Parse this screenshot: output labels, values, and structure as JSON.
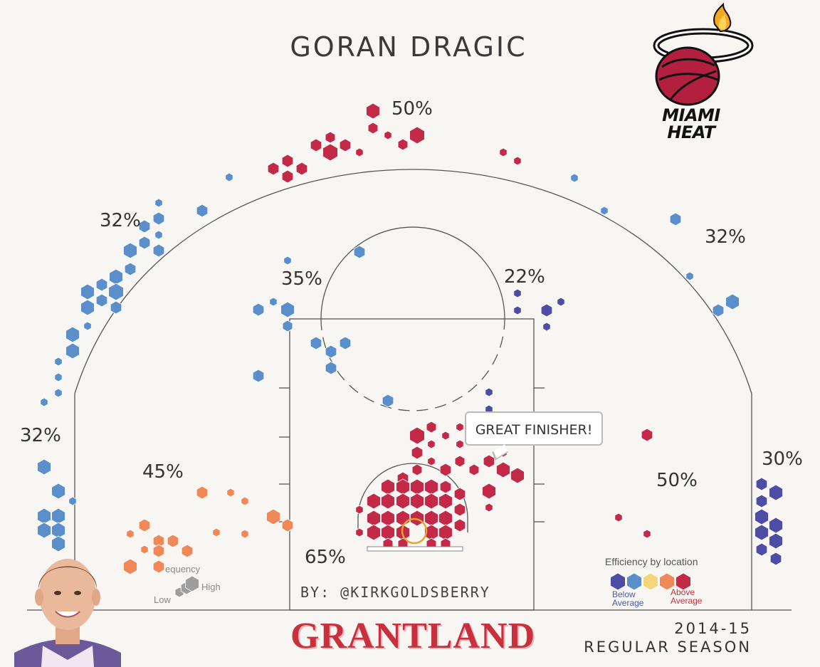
{
  "header": {
    "player_name": "GORAN DRAGIC",
    "byline": "BY: @KIRKGOLDSBERRY",
    "season_year": "2014-15",
    "season_type": "REGULAR SEASON",
    "publisher": "GRANTLAND",
    "team_logo_text_1": "MIAMI",
    "team_logo_text_2": "HEAT"
  },
  "callout": "GREAT FINISHER!",
  "legend": {
    "efficiency_title": "Efficiency by location",
    "below_line1": "Below",
    "below_line2": "Average",
    "above_line1": "Above",
    "above_line2": "Average",
    "frequency_title": "equency",
    "low": "Low",
    "high": "High",
    "scale_colors": [
      "#4e4da6",
      "#5b8fcc",
      "#f5d57a",
      "#f08858",
      "#c22a48"
    ]
  },
  "colors": {
    "background": "#f7f6f3",
    "court_line": "#555555",
    "brand_red": "#c8303d"
  },
  "chart_data": {
    "type": "hexbin",
    "title": "GORAN DRAGIC",
    "zones": [
      {
        "zone": "left corner three",
        "fg_pct": "32%"
      },
      {
        "zone": "left wing three",
        "fg_pct": "32%"
      },
      {
        "zone": "top of key three",
        "fg_pct": "50%"
      },
      {
        "zone": "right wing three",
        "fg_pct": "32%"
      },
      {
        "zone": "right corner three",
        "fg_pct": "30%"
      },
      {
        "zone": "left elbow",
        "fg_pct": "35%"
      },
      {
        "zone": "right elbow",
        "fg_pct": "22%"
      },
      {
        "zone": "left baseline midrange",
        "fg_pct": "45%"
      },
      {
        "zone": "right baseline midrange",
        "fg_pct": "50%"
      },
      {
        "zone": "restricted area",
        "fg_pct": "65%"
      }
    ]
  }
}
